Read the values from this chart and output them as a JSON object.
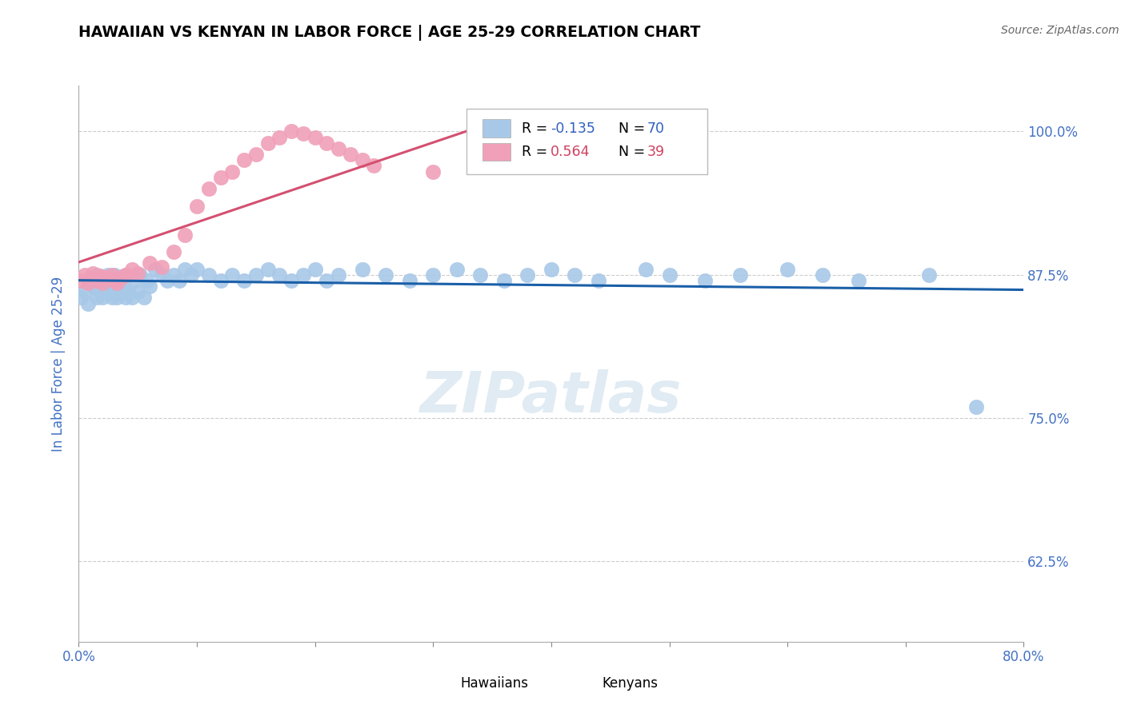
{
  "title": "HAWAIIAN VS KENYAN IN LABOR FORCE | AGE 25-29 CORRELATION CHART",
  "source_text": "Source: ZipAtlas.com",
  "ylabel": "In Labor Force | Age 25-29",
  "ytick_labels": [
    "100.0%",
    "87.5%",
    "75.0%",
    "62.5%"
  ],
  "ytick_values": [
    1.0,
    0.875,
    0.75,
    0.625
  ],
  "legend_blue_r": "-0.135",
  "legend_blue_n": "70",
  "legend_pink_r": "0.564",
  "legend_pink_n": "39",
  "hawaiian_color": "#a8c8e8",
  "kenyan_color": "#f0a0b8",
  "trend_blue_color": "#1a5fa8",
  "trend_pink_color": "#d45070",
  "watermark": "ZIPatlas",
  "x_min": 0.0,
  "x_max": 0.8,
  "y_min": 0.555,
  "y_max": 1.04,
  "hawaiian_x": [
    0.002,
    0.005,
    0.008,
    0.01,
    0.012,
    0.015,
    0.015,
    0.018,
    0.02,
    0.02,
    0.022,
    0.025,
    0.025,
    0.028,
    0.03,
    0.03,
    0.032,
    0.035,
    0.035,
    0.038,
    0.04,
    0.04,
    0.042,
    0.045,
    0.048,
    0.05,
    0.052,
    0.055,
    0.058,
    0.06,
    0.065,
    0.07,
    0.075,
    0.08,
    0.085,
    0.09,
    0.095,
    0.1,
    0.11,
    0.12,
    0.13,
    0.14,
    0.15,
    0.16,
    0.17,
    0.18,
    0.19,
    0.2,
    0.21,
    0.22,
    0.24,
    0.26,
    0.28,
    0.3,
    0.32,
    0.34,
    0.36,
    0.38,
    0.4,
    0.42,
    0.44,
    0.48,
    0.5,
    0.53,
    0.56,
    0.6,
    0.63,
    0.66,
    0.72,
    0.76
  ],
  "hawaiian_y": [
    0.855,
    0.86,
    0.85,
    0.87,
    0.865,
    0.855,
    0.875,
    0.86,
    0.855,
    0.87,
    0.865,
    0.86,
    0.875,
    0.855,
    0.865,
    0.875,
    0.855,
    0.86,
    0.87,
    0.865,
    0.855,
    0.875,
    0.86,
    0.855,
    0.87,
    0.86,
    0.875,
    0.855,
    0.87,
    0.865,
    0.88,
    0.875,
    0.87,
    0.875,
    0.87,
    0.88,
    0.875,
    0.88,
    0.875,
    0.87,
    0.875,
    0.87,
    0.875,
    0.88,
    0.875,
    0.87,
    0.875,
    0.88,
    0.87,
    0.875,
    0.88,
    0.875,
    0.87,
    0.875,
    0.88,
    0.875,
    0.87,
    0.875,
    0.88,
    0.875,
    0.87,
    0.88,
    0.875,
    0.87,
    0.875,
    0.88,
    0.875,
    0.87,
    0.875,
    0.76
  ],
  "kenyan_x": [
    0.002,
    0.005,
    0.008,
    0.01,
    0.012,
    0.015,
    0.018,
    0.02,
    0.022,
    0.025,
    0.028,
    0.03,
    0.032,
    0.035,
    0.038,
    0.04,
    0.045,
    0.05,
    0.06,
    0.07,
    0.08,
    0.09,
    0.1,
    0.11,
    0.12,
    0.13,
    0.14,
    0.15,
    0.16,
    0.17,
    0.18,
    0.19,
    0.2,
    0.21,
    0.22,
    0.23,
    0.24,
    0.25,
    0.3
  ],
  "kenyan_y": [
    0.87,
    0.875,
    0.868,
    0.872,
    0.876,
    0.87,
    0.874,
    0.868,
    0.873,
    0.872,
    0.875,
    0.87,
    0.868,
    0.872,
    0.874,
    0.875,
    0.88,
    0.876,
    0.885,
    0.882,
    0.895,
    0.91,
    0.935,
    0.95,
    0.96,
    0.965,
    0.975,
    0.98,
    0.99,
    0.995,
    1.0,
    0.998,
    0.995,
    0.99,
    0.985,
    0.98,
    0.975,
    0.97,
    0.965
  ]
}
